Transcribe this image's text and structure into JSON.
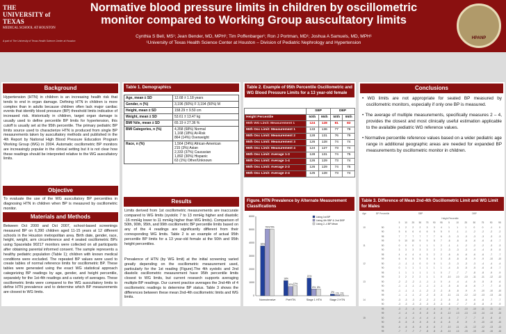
{
  "header": {
    "title": "Normative blood pressure limits in children by oscillometric monitor compared to Working Group auscultatory limits",
    "authors": "Cynthia S Bell, MS¹; Jean Bender, MD, MPH¹; Tim Poffenbarger¹; Ron J Portman, MD¹; Joshua A Samuels, MD, MPH¹",
    "affiliation": "¹University of Texas Health Science Center at Houston – Division of Pediatric Nephrology and Hypertension",
    "logo_line1": "THE UNIVERSITY of TEXAS",
    "logo_line2": "MEDICAL SCHOOL AT HOUSTON",
    "logo_foot": "A part of The University of Texas Health Science Center at Houston",
    "seal": "HPANP"
  },
  "background": {
    "heading": "Background",
    "text": "Hypertension (HTN) in children is an increasing health risk that tends to end in organ damage. Defining HTN in children is more complex than in adults because children often lack major cardiac events that identify blood pressure (BP) threshold limits indicative of increased risk. Historically in children, target organ damage is usually used to define percentile BP limits for hypertension, this cutoff is usually set at the 95th percentile. The primary pediatric BP limits source used to characterize HTN is produced from single BP measurements taken by auscultatory methods and published in the 4th Report by National High Blood Pressure Education Program Working Group (WG) in 2004. Automatic oscillometric BP monitors are increasingly popular in the clinical setting but it is not clear how these readings should be interpreted relative to the WG auscultatory limits."
  },
  "objective": {
    "heading": "Objective",
    "text": "To evaluate the use of the WG auscultatory BP percentiles in diagnosing HTN in children when BP is measured by oscillometric monitor."
  },
  "methods": {
    "heading": "Materials and Methods",
    "text": "Between Oct 2000 and Oct 2007, school-based screenings measured BP on 6,390 children aged 11-15 years at 12 different schools in the Houston metropolitan area. Birth date, gender, race, height, weight, arm circumference and 4 seated oscillometric BPs using Spacelabs 90217 monitors were collected on all participants after obtaining parental informed consent. The sample represents a healthy pediatric population (Table 1); children with known medical conditions were excluded. The repeated BP values were used to create tables of normal reference limits for oscillometric BP. These tables were generated using the exact WG statistical approach categorizing BP readings by age, gender, and height percentile, separately for the 1st-4th readings and a variety of averages. These oscillometric limits were compared to the WG auscultatory limits to define HTN prevalence and to determine which BP measurements are closest to WG limits."
  },
  "table1": {
    "heading": "Table 1. Demographics",
    "rows": [
      {
        "label": "Age, mean ± SD",
        "value": "12.68 ± 1.18 years"
      },
      {
        "label": "Gender, n (%)",
        "value": "3,196 (50%) F        3,194 (50%) M"
      },
      {
        "label": "Height, mean ± SD",
        "value": "158.29 ± 9.50 cm"
      },
      {
        "label": "Weight, mean ± SD",
        "value": "53.61 ± 13.47 kg"
      },
      {
        "label": "BMI %ile, mean ± SD",
        "value": "65.19 ± 27.36 %"
      },
      {
        "label": "BMI Categories, n (%)",
        "value": "4,358 (68%) Normal\n1,168 (18%) At-Risk\n864 (14%) Overweight"
      },
      {
        "label": "Race, n (%)",
        "value": "1,564 (24%) African-American\n215 (3%) Asian\n2,333 (37%) Caucasian\n1,892 (30%) Hispanic\n63 (1%) Other/Unknown"
      }
    ]
  },
  "table2": {
    "heading": "Table 2. Example of 95th Percentile Oscillometric and WG Blood Pressure Limits for a 13 year-old female",
    "group_sbp": "SBP",
    "group_dbp": "DBP",
    "col_label": "Height Percentile",
    "cols": [
      "50th",
      "95th",
      "50th",
      "95th"
    ],
    "rows": [
      {
        "label": "95th WG Limit: Measurement 1",
        "vals": [
          "124",
          "128",
          "81",
          "83"
        ]
      },
      {
        "label": "95th Osc Limit: Measurement 1",
        "vals": [
          "133",
          "136",
          "77",
          "78"
        ]
      },
      {
        "label": "95th Osc Limit: Measurement 2",
        "vals": [
          "128",
          "131",
          "76",
          "79"
        ]
      },
      {
        "label": "95th Osc Limit: Measurement 3",
        "vals": [
          "126",
          "128",
          "74",
          "74"
        ]
      },
      {
        "label": "95th Osc Limit: Measurement 4",
        "vals": [
          "124",
          "127",
          "73",
          "74"
        ]
      },
      {
        "label": "95th Osc Limit: Average 1-3",
        "vals": [
          "128",
          "131",
          "74",
          "75"
        ]
      },
      {
        "label": "95th Osc Limit: Average 1-4",
        "vals": [
          "126",
          "129",
          "73",
          "74"
        ]
      },
      {
        "label": "95th Osc Limit: Average 2-3",
        "vals": [
          "126",
          "129",
          "74",
          "75"
        ]
      },
      {
        "label": "95th Osc Limit: Average 2-4",
        "vals": [
          "125",
          "128",
          "73",
          "74"
        ]
      }
    ]
  },
  "results": {
    "heading": "Results",
    "p1": "Limits derived from 1st oscillometric measurements are inaccurate compared to WG limits (systolic 7 to 13 mmHg higher and diastolic -16 mmHg lower to 11 mmHg higher than WG limits). Comparison of 50th, 90th, 95th, and 99th oscillometric BP percentile limits based on any of the 4 readings are significantly different from their corresponding WG limits. Table 2 is an example of actual 95th percentile BP limits for a 13 year-old female at the 50th and 95th height percentiles.",
    "p2": "Prevalence of HTN (by WG limit) at the initial screening varied greatly depending on the oscillometric measurement used, particularly for the 1st reading (Figure).The 4th systolic and 2nd diastolic oscillometric measurement have 95th percentile limits closest to WG limits, but current research supports averaging multiple BP readings. Our current practice averages the 2nd-4th of 4 oscillometric readings to determine BP status. Table 3 shows the differences between these mean 2nd-4th oscillometric limits and WG limits."
  },
  "figure": {
    "heading": "Figure. HTN Prevalence by Alternate Measurement Classifications"
  },
  "chart_data": {
    "type": "bar",
    "categories": [
      "Normotensive",
      "PreHTN",
      "Stage 1 HTN",
      "Stage 2 HTN"
    ],
    "series": [
      {
        "name": "Using 1st BP",
        "values": [
          59,
          18,
          21,
          2
        ]
      },
      {
        "name": "Using 4th SBP & 2nd DBP",
        "values": [
          79,
          11,
          8,
          1
        ]
      },
      {
        "name": "Using 2–4 BP Mean",
        "values": [
          79,
          12,
          8,
          1
        ]
      }
    ],
    "value_labels": [
      [
        "59%",
        "18%",
        "21%",
        "2%"
      ],
      [
        "79%",
        "11%",
        "8%",
        "1%"
      ],
      [
        "79%",
        "12%",
        "8%",
        "1%"
      ]
    ],
    "ytick_labels": [
      "0",
      "1000",
      "2000",
      "3000",
      "4000",
      "5000",
      "6000"
    ],
    "ylim": [
      0,
      6000
    ],
    "colors": [
      "#1f3f9a",
      "#9999cc",
      "#dddddd"
    ]
  },
  "conclusions": {
    "heading": "Conclusions",
    "items": [
      "WG limits are not appropriate for seated BP measured by oscillometric monitors, especially if only one BP is measured.",
      "The average of multiple measurements, specifically measures 2 – 4, provides the closest and most clinically useful estimation applicable to the available pediatric WG reference values.",
      "Normative percentile reference values based on a wider pediatric age range in additional geographic areas are needed for expanded BP measurements by oscillometric monitor in children."
    ]
  },
  "table3": {
    "heading": "Table 3. Difference of Mean 2nd-4th Oscillometric Limit and WG Limit for Males",
    "header1": [
      "Age",
      "BP Percentile",
      "SBP",
      "DBP"
    ],
    "header2": "Height Percentile",
    "hcols": [
      "5",
      "10",
      "25",
      "50",
      "75",
      "90",
      "95",
      "5",
      "10",
      "25",
      "50",
      "75",
      "90",
      "95"
    ],
    "rows": [
      [
        "10",
        "50",
        "1",
        "2",
        "2",
        "2",
        "3",
        "3",
        "4",
        "1",
        "1",
        "1",
        "0",
        "0",
        "-1",
        "0"
      ],
      [
        "",
        "90",
        "5",
        "6",
        "6",
        "6",
        "6",
        "5",
        "5",
        "0",
        "-1",
        "-1",
        "-2",
        "-2",
        "-2",
        "-2"
      ],
      [
        "",
        "95",
        "7",
        "7",
        "7",
        "7",
        "7",
        "7",
        "6",
        "-3",
        "-3",
        "-3",
        "-3",
        "-3",
        "-3",
        "-3"
      ],
      [
        "",
        "99",
        "9",
        "10",
        "10",
        "9",
        "9",
        "8",
        "7",
        "-6",
        "-6",
        "-6",
        "-6",
        "-6",
        "-6",
        "-7"
      ],
      [
        "11",
        "50",
        "0",
        "0",
        "0",
        "1",
        "1",
        "1",
        "2",
        "-1",
        "-1",
        "-2",
        "-2",
        "-2",
        "-3",
        "-3"
      ],
      [
        "",
        "90",
        "3",
        "3",
        "3",
        "3",
        "3",
        "2",
        "2",
        "-3",
        "-3",
        "-3",
        "-4",
        "-4",
        "-5",
        "-5"
      ],
      [
        "",
        "95",
        "4",
        "4",
        "4",
        "4",
        "3",
        "2",
        "2",
        "-6",
        "-6",
        "-6",
        "-6",
        "-6",
        "-7",
        "-7"
      ],
      [
        "",
        "99",
        "6",
        "6",
        "5",
        "5",
        "5",
        "4",
        "3",
        "-8",
        "-8",
        "-8",
        "-9",
        "-9",
        "-10",
        "-10"
      ],
      [
        "12",
        "50",
        "-1",
        "-1",
        "-1",
        "0",
        "0",
        "0",
        "1",
        "-3",
        "-3",
        "-3",
        "-3",
        "-4",
        "-4",
        "-4"
      ],
      [
        "",
        "90",
        "0",
        "1",
        "1",
        "1",
        "1",
        "1",
        "1",
        "-4",
        "-5",
        "-5",
        "-5",
        "-6",
        "-6",
        "-7"
      ],
      [
        "",
        "95",
        "1",
        "1",
        "1",
        "1",
        "1",
        "1",
        "0",
        "-7",
        "-7",
        "-7",
        "-8",
        "-8",
        "-9",
        "-9"
      ],
      [
        "",
        "99",
        "2",
        "2",
        "2",
        "2",
        "1",
        "1",
        "0",
        "-10",
        "-10",
        "-10",
        "-11",
        "-11",
        "-12",
        "-12"
      ],
      [
        "13",
        "50",
        "-2",
        "-2",
        "-2",
        "-1",
        "-1",
        "-1",
        "0",
        "-4",
        "-4",
        "-4",
        "-5",
        "-5",
        "-5",
        "-6"
      ],
      [
        "",
        "90",
        "-1",
        "-1",
        "-1",
        "-1",
        "-1",
        "-1",
        "-1",
        "-5",
        "-6",
        "-6",
        "-6",
        "-7",
        "-7",
        "-8"
      ],
      [
        "",
        "95",
        "-1",
        "-1",
        "-1",
        "-1",
        "-2",
        "-2",
        "-2",
        "-8",
        "-8",
        "-9",
        "-9",
        "-10",
        "-10",
        "-10"
      ],
      [
        "",
        "99",
        "-1",
        "-1",
        "-1",
        "-2",
        "-2",
        "-3",
        "-3",
        "-11",
        "-11",
        "-12",
        "-12",
        "-13",
        "-13",
        "-14"
      ],
      [
        "14",
        "50",
        "-3",
        "-3",
        "-3",
        "-2",
        "-2",
        "-2",
        "-2",
        "-5",
        "-5",
        "-6",
        "-6",
        "-6",
        "-7",
        "-7"
      ],
      [
        "",
        "90",
        "-3",
        "-3",
        "-3",
        "-3",
        "-3",
        "-3",
        "-3",
        "-6",
        "-7",
        "-7",
        "-8",
        "-8",
        "-9",
        "-9"
      ],
      [
        "",
        "95",
        "-3",
        "-3",
        "-4",
        "-4",
        "-4",
        "-4",
        "-4",
        "-9",
        "-9",
        "-10",
        "-10",
        "-11",
        "-11",
        "-11"
      ],
      [
        "",
        "99",
        "-4",
        "-4",
        "-4",
        "-5",
        "-5",
        "-5",
        "-6",
        "-12",
        "-13",
        "-13",
        "-13",
        "-14",
        "-14",
        "-15"
      ],
      [
        "15",
        "50",
        "-4",
        "-4",
        "-4",
        "-4",
        "-4",
        "-4",
        "-4",
        "-6",
        "-7",
        "-7",
        "-7",
        "-8",
        "-8",
        "-8"
      ],
      [
        "",
        "90",
        "-5",
        "-5",
        "-5",
        "-5",
        "-5",
        "-5",
        "-6",
        "-8",
        "-8",
        "-9",
        "-9",
        "-10",
        "-10",
        "-10"
      ],
      [
        "",
        "95",
        "-6",
        "-6",
        "-6",
        "-6",
        "-6",
        "-6",
        "-7",
        "-10",
        "-11",
        "-11",
        "-12",
        "-12",
        "-13",
        "-13"
      ],
      [
        "",
        "99",
        "-7",
        "-7",
        "-7",
        "-7",
        "-8",
        "-8",
        "-8",
        "-14",
        "-14",
        "-15",
        "-15",
        "-16",
        "-16",
        "-16"
      ]
    ]
  }
}
